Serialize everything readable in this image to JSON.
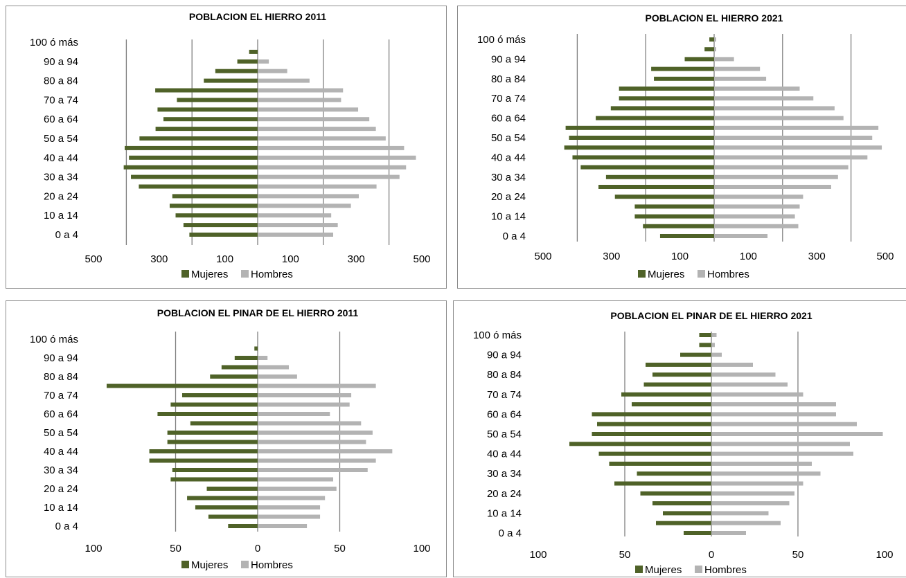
{
  "colors": {
    "mujeres": "#4f6228",
    "hombres": "#b3b3b3",
    "grid": "#7f7f7f",
    "border": "#8c8c8c"
  },
  "legend": {
    "mujeres": "Mujeres",
    "hombres": "Hombres"
  },
  "chart_data": [
    {
      "type": "bar",
      "orientation": "horizontal-population-pyramid",
      "title": "POBLACION EL HIERRO 2011",
      "categories": [
        "0 a 4",
        "5 a 9",
        "10 a 14",
        "15 a 19",
        "20 a 24",
        "25 a 29",
        "30 a 34",
        "35 a 39",
        "40 a 44",
        "45 a 49",
        "50 a 54",
        "55 a 59",
        "60 a 64",
        "65 a 69",
        "70 a 74",
        "75 a 79",
        "80 a 84",
        "85 a 89",
        "90 a 94",
        "95 a 99",
        "100 ó más"
      ],
      "category_labels": [
        "0 a 4",
        "",
        "10 a 14",
        "",
        "20 a 24",
        "",
        "30 a 34",
        "",
        "40 a 44",
        "",
        "50 a 54",
        "",
        "60 a 64",
        "",
        "70 a 74",
        "",
        "80 a 84",
        "",
        "90 a 94",
        "",
        "100 ó más"
      ],
      "series": [
        {
          "name": "Mujeres",
          "values": [
            208,
            226,
            250,
            268,
            260,
            362,
            386,
            408,
            392,
            405,
            360,
            311,
            287,
            305,
            246,
            312,
            164,
            129,
            62,
            26,
            0
          ]
        },
        {
          "name": "Hombres",
          "values": [
            230,
            244,
            224,
            284,
            308,
            362,
            432,
            452,
            482,
            446,
            390,
            360,
            340,
            306,
            254,
            260,
            158,
            90,
            34,
            0,
            0
          ]
        }
      ],
      "xlim": [
        -500,
        500
      ],
      "xticks": [
        -500,
        -300,
        -100,
        100,
        300,
        500
      ],
      "xtick_labels": [
        "500",
        "300",
        "100",
        "100",
        "300",
        "500"
      ],
      "gridlines": [
        -400,
        -200,
        0,
        200,
        400
      ],
      "grid": true,
      "legend_position": "bottom"
    },
    {
      "type": "bar",
      "orientation": "horizontal-population-pyramid",
      "title": "POBLACION EL HIERRO 2021",
      "categories": [
        "0 a 4",
        "5 a 9",
        "10 a 14",
        "15 a 19",
        "20 a 24",
        "25 a 29",
        "30 a 34",
        "35 a 39",
        "40 a 44",
        "45 a 49",
        "50 a 54",
        "55 a 59",
        "60 a 64",
        "65 a 69",
        "70 a 74",
        "75 a 79",
        "80 a 84",
        "85 a 89",
        "90 a 94",
        "95 a 99",
        "100 ó más"
      ],
      "category_labels": [
        "0 a 4",
        "",
        "10 a 14",
        "",
        "20 a 24",
        "",
        "30 a 34",
        "",
        "40 a 44",
        "",
        "50 a 54",
        "",
        "60 a 64",
        "",
        "70 a 74",
        "",
        "80 a 84",
        "",
        "90 a 94",
        "",
        "100 ó más"
      ],
      "series": [
        {
          "name": "Mujeres",
          "values": [
            158,
            208,
            232,
            232,
            290,
            338,
            316,
            390,
            414,
            438,
            424,
            434,
            346,
            302,
            278,
            278,
            176,
            184,
            86,
            28,
            14
          ]
        },
        {
          "name": "Hombres",
          "values": [
            156,
            246,
            236,
            250,
            260,
            342,
            362,
            392,
            448,
            490,
            462,
            480,
            378,
            352,
            290,
            250,
            152,
            134,
            58,
            6,
            6
          ]
        }
      ],
      "xlim": [
        -500,
        500
      ],
      "xticks": [
        -500,
        -300,
        -100,
        100,
        300,
        500
      ],
      "xtick_labels": [
        "500",
        "300",
        "100",
        "100",
        "300",
        "500"
      ],
      "gridlines": [
        -400,
        -200,
        0,
        200,
        400
      ],
      "grid": true,
      "legend_position": "bottom"
    },
    {
      "type": "bar",
      "orientation": "horizontal-population-pyramid",
      "title": "POBLACION EL PINAR DE EL HIERRO 2011",
      "categories": [
        "0 a 4",
        "5 a 9",
        "10 a 14",
        "15 a 19",
        "20 a 24",
        "25 a 29",
        "30 a 34",
        "35 a 39",
        "40 a 44",
        "45 a 49",
        "50 a 54",
        "55 a 59",
        "60 a 64",
        "65 a 69",
        "70 a 74",
        "75 a 79",
        "80 a 84",
        "85 a 89",
        "90 a 94",
        "95 a 99",
        "100 ó más"
      ],
      "category_labels": [
        "0 a 4",
        "",
        "10 a 14",
        "",
        "20 a 24",
        "",
        "30 a 34",
        "",
        "40 a 44",
        "",
        "50 a 54",
        "",
        "60 a 64",
        "",
        "70 a 74",
        "",
        "80 a 84",
        "",
        "90 a 94",
        "",
        "100 ó más"
      ],
      "series": [
        {
          "name": "Mujeres",
          "values": [
            18,
            30,
            38,
            43,
            31,
            53,
            52,
            66,
            66,
            55,
            55,
            41,
            61,
            53,
            46,
            92,
            29,
            22,
            14,
            2,
            0
          ]
        },
        {
          "name": "Hombres",
          "values": [
            30,
            38,
            38,
            41,
            48,
            46,
            67,
            72,
            82,
            66,
            70,
            63,
            44,
            56,
            57,
            72,
            24,
            19,
            6,
            0,
            0
          ]
        }
      ],
      "xlim": [
        -100,
        100
      ],
      "xticks": [
        -100,
        -50,
        0,
        50,
        100
      ],
      "xtick_labels": [
        "100",
        "50",
        "0",
        "50",
        "100"
      ],
      "gridlines": [
        -50,
        0,
        50
      ],
      "grid": true,
      "legend_position": "bottom"
    },
    {
      "type": "bar",
      "orientation": "horizontal-population-pyramid",
      "title": "POBLACION EL PINAR DE EL HIERRO 2021",
      "categories": [
        "0 a 4",
        "5 a 9",
        "10 a 14",
        "15 a 19",
        "20 a 24",
        "25 a 29",
        "30 a 34",
        "35 a 39",
        "40 a 44",
        "45 a 49",
        "50 a 54",
        "55 a 59",
        "60 a 64",
        "65 a 69",
        "70 a 74",
        "75 a 79",
        "80 a 84",
        "85 a 89",
        "90 a 94",
        "95 a 99",
        "100 ó más"
      ],
      "category_labels": [
        "0 a 4",
        "",
        "10 a 14",
        "",
        "20 a 24",
        "",
        "30 a 34",
        "",
        "40 a 44",
        "",
        "50 a 54",
        "",
        "60 a 64",
        "",
        "70 a 74",
        "",
        "80 a 84",
        "",
        "90 a 94",
        "",
        "100 ó más"
      ],
      "series": [
        {
          "name": "Mujeres",
          "values": [
            16,
            32,
            28,
            34,
            41,
            56,
            43,
            59,
            65,
            82,
            69,
            66,
            69,
            46,
            52,
            39,
            34,
            38,
            18,
            7,
            7
          ]
        },
        {
          "name": "Hombres",
          "values": [
            20,
            40,
            33,
            45,
            48,
            53,
            63,
            58,
            82,
            80,
            99,
            84,
            72,
            72,
            53,
            44,
            37,
            24,
            6,
            2,
            3
          ]
        }
      ],
      "xlim": [
        -100,
        100
      ],
      "xticks": [
        -100,
        -50,
        0,
        50,
        100
      ],
      "xtick_labels": [
        "100",
        "50",
        "0",
        "50",
        "100"
      ],
      "gridlines": [
        -50,
        0,
        50
      ],
      "grid": true,
      "legend_position": "bottom"
    }
  ]
}
